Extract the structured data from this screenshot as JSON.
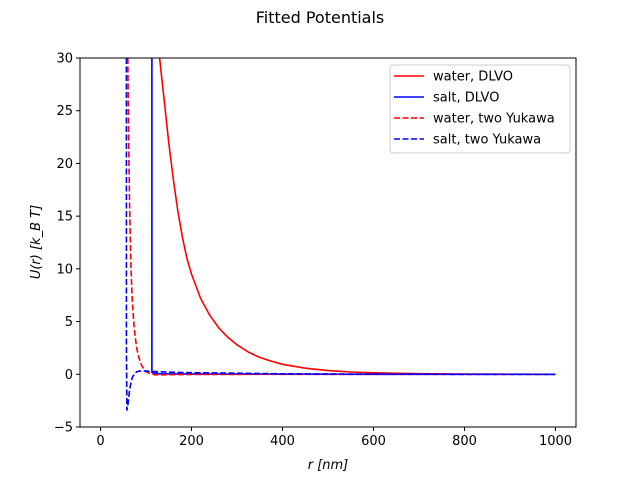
{
  "chart_data": {
    "type": "line",
    "title": "Fitted Potentials",
    "xlabel": "r [nm]",
    "ylabel": "U(r) [k_B T]",
    "xlim": [
      -45,
      1045
    ],
    "ylim": [
      -5,
      30
    ],
    "xticks": [
      0,
      200,
      400,
      600,
      800,
      1000
    ],
    "yticks": [
      -5,
      0,
      5,
      10,
      15,
      20,
      25,
      30
    ],
    "grid": false,
    "legend_position": "top-right",
    "series": [
      {
        "name": "water, DLVO",
        "color": "#ff0000",
        "linestyle": "solid",
        "x": [
          130,
          140,
          150,
          160,
          170,
          180,
          190,
          200,
          220,
          240,
          260,
          280,
          300,
          325,
          350,
          375,
          400,
          450,
          500,
          550,
          600,
          650,
          700,
          800,
          900,
          1000
        ],
        "y": [
          30,
          26,
          22,
          18.5,
          15.5,
          13,
          11,
          9.5,
          7.2,
          5.6,
          4.4,
          3.5,
          2.8,
          2.1,
          1.6,
          1.25,
          0.95,
          0.58,
          0.35,
          0.22,
          0.14,
          0.09,
          0.06,
          0.02,
          0.01,
          0
        ]
      },
      {
        "name": "salt, DLVO",
        "color": "#0000ff",
        "linestyle": "solid",
        "x": [
          113,
          113,
          114,
          130,
          200,
          400,
          600,
          800,
          1000
        ],
        "y": [
          30,
          0.2,
          0.15,
          0.05,
          0.02,
          0.01,
          0,
          0,
          0
        ]
      },
      {
        "name": "water, two Yukawa",
        "color": "#ff0000",
        "linestyle": "dashed",
        "x": [
          60,
          62,
          64,
          66,
          68,
          70,
          73,
          76,
          80,
          85,
          90,
          95,
          100,
          110,
          120,
          140,
          160,
          200,
          300,
          400,
          600,
          800,
          1000
        ],
        "y": [
          30,
          22,
          16,
          12,
          9,
          7,
          5,
          3.6,
          2.4,
          1.5,
          0.9,
          0.5,
          0.25,
          0.05,
          -0.05,
          -0.05,
          -0.03,
          -0.02,
          -0.01,
          0,
          0,
          0,
          0
        ]
      },
      {
        "name": "salt, two Yukawa",
        "color": "#0000ff",
        "linestyle": "dashed",
        "x": [
          57,
          57,
          58,
          60,
          62,
          64,
          67,
          70,
          75,
          80,
          85,
          90,
          100,
          120,
          150,
          200,
          300,
          400,
          600,
          800,
          1000
        ],
        "y": [
          30,
          3,
          -3.4,
          -3.0,
          -2.2,
          -1.5,
          -0.8,
          -0.3,
          0.05,
          0.25,
          0.3,
          0.3,
          0.3,
          0.25,
          0.2,
          0.15,
          0.1,
          0.05,
          0.02,
          0,
          0
        ]
      }
    ]
  }
}
